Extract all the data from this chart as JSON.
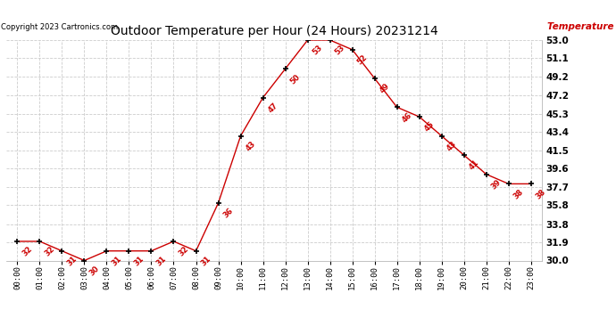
{
  "title": "Outdoor Temperature per Hour (24 Hours) 20231214",
  "copyright": "Copyright 2023 Cartronics.com",
  "legend_label": "Temperature (°F)",
  "hours": [
    "00:00",
    "01:00",
    "02:00",
    "03:00",
    "04:00",
    "05:00",
    "06:00",
    "07:00",
    "08:00",
    "09:00",
    "10:00",
    "11:00",
    "12:00",
    "13:00",
    "14:00",
    "15:00",
    "16:00",
    "17:00",
    "18:00",
    "19:00",
    "20:00",
    "21:00",
    "22:00",
    "23:00"
  ],
  "temperatures": [
    32,
    32,
    31,
    30,
    31,
    31,
    31,
    32,
    31,
    36,
    43,
    47,
    50,
    53,
    53,
    52,
    49,
    46,
    45,
    43,
    41,
    39,
    38,
    38
  ],
  "line_color": "#cc0000",
  "marker_color": "#000000",
  "annotation_color": "#cc0000",
  "bg_color": "#ffffff",
  "grid_color": "#cccccc",
  "title_color": "#000000",
  "copyright_color": "#000000",
  "legend_color": "#cc0000",
  "ylim_min": 30.0,
  "ylim_max": 53.0,
  "yticks": [
    30.0,
    31.9,
    33.8,
    35.8,
    37.7,
    39.6,
    41.5,
    43.4,
    45.3,
    47.2,
    49.2,
    51.1,
    53.0
  ],
  "ytick_labels": [
    "30.0",
    "31.9",
    "33.8",
    "35.8",
    "37.7",
    "39.6",
    "41.5",
    "43.4",
    "45.3",
    "47.2",
    "49.2",
    "51.1",
    "53.0"
  ]
}
